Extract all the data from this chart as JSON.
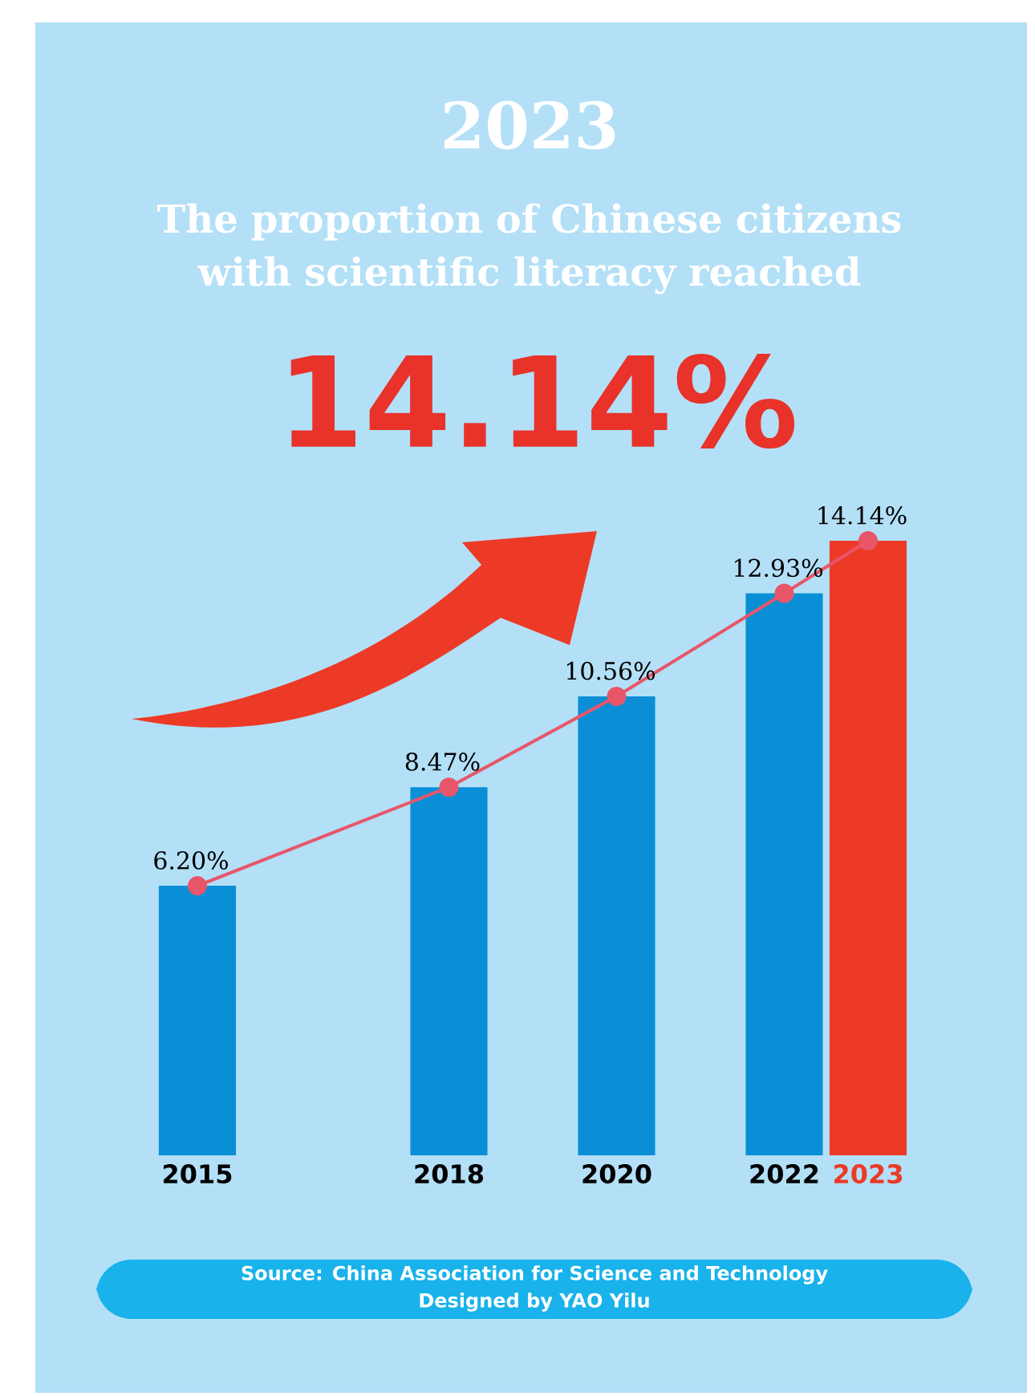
{
  "chart_data": {
    "type": "bar",
    "title": "2023",
    "subtitle": "The proportion of Chinese citizens with scientific literacy reached",
    "x": [
      2015,
      2018,
      2020,
      2022,
      2023
    ],
    "xlim": [
      2015,
      2023
    ],
    "xticks": [
      2015,
      2018,
      2020,
      2022,
      2023
    ],
    "tick_labels": "x",
    "series": [
      {
        "colors": [
          "#0a8fd6",
          "#0a8fd6",
          "#0a8fd6",
          "#0a8fd6",
          "#ec3a27"
        ],
        "values": [
          6.2,
          8.47,
          10.56,
          12.93,
          14.14
        ],
        "value_labels": [
          "6.20%",
          "8.47%",
          "10.56%",
          "12.93%",
          "14.14%"
        ]
      },
      {
        "type": "line",
        "color": "#e8566a",
        "marker": "circle",
        "values": [
          6.2,
          8.47,
          10.56,
          12.93,
          14.14
        ]
      }
    ],
    "annotations": [
      "14.14%",
      "Source: China Association for Science and Technology",
      "Designed by YAO Yilu"
    ]
  }
}
